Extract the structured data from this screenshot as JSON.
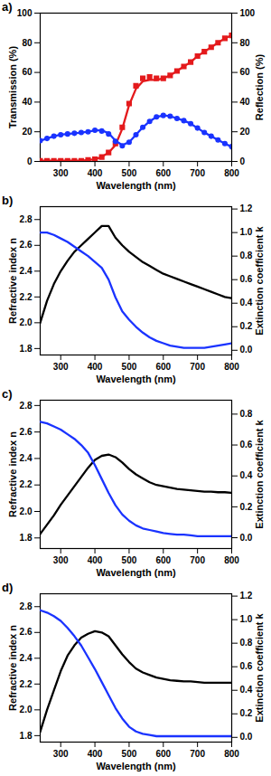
{
  "chart_data": [
    {
      "type": "line",
      "title": "a)",
      "xlabel": "Wavelength (nm)",
      "ylabel": "Transmission (%)",
      "y2label": "Reflection (%)",
      "x": [
        240,
        260,
        280,
        300,
        320,
        340,
        360,
        380,
        400,
        420,
        440,
        460,
        480,
        500,
        520,
        540,
        560,
        580,
        600,
        620,
        640,
        660,
        680,
        700,
        720,
        740,
        760,
        780,
        800
      ],
      "xlim": [
        240,
        800
      ],
      "xticks": [
        300,
        400,
        500,
        600,
        700,
        800
      ],
      "ylim": [
        0,
        100
      ],
      "yticks": [
        0,
        20,
        40,
        60,
        80,
        100
      ],
      "y2lim": [
        0,
        100
      ],
      "y2ticks": [
        0,
        20,
        40,
        60,
        80,
        100
      ],
      "series": [
        {
          "type": "line",
          "color": "#e41a1c",
          "line_style": "solid",
          "values": [
            0.5,
            0.5,
            0.5,
            0.5,
            0.5,
            0.5,
            0.5,
            1,
            1.5,
            3,
            6,
            11,
            22,
            38,
            49,
            54,
            55,
            55,
            56,
            58,
            61,
            64,
            67,
            71,
            74,
            77,
            80,
            83,
            85
          ]
        },
        {
          "type": "scatter",
          "color": "#e41a1c",
          "marker": "square",
          "values": [
            0.5,
            0.5,
            0.5,
            0.5,
            0.5,
            0.5,
            0.5,
            1,
            1.5,
            3,
            6,
            12,
            23,
            39,
            51,
            56,
            57,
            56,
            56,
            58,
            61,
            64,
            67,
            71,
            74,
            77,
            80,
            83,
            85
          ]
        },
        {
          "type": "line",
          "color": "#1a33ff",
          "line_style": "solid",
          "axis": "y2",
          "values": [
            14,
            15.5,
            17,
            18,
            18.5,
            19,
            19.5,
            20,
            21,
            21,
            19,
            14,
            11,
            13,
            18,
            23,
            27,
            30,
            31,
            30.5,
            29,
            27.5,
            25.5,
            22.5,
            19.5,
            17,
            14.5,
            12,
            10
          ]
        },
        {
          "type": "scatter",
          "color": "#1a33ff",
          "marker": "circle",
          "axis": "y2",
          "values": [
            14,
            15.5,
            17,
            18,
            18.5,
            19,
            19.5,
            20,
            21,
            20.5,
            18.5,
            13.5,
            10.5,
            13,
            18,
            23,
            27,
            30,
            31,
            30.5,
            29,
            27.5,
            25.5,
            22.5,
            19.5,
            17,
            14.5,
            12,
            10
          ]
        }
      ]
    },
    {
      "type": "line",
      "title": "b)",
      "xlabel": "Wavelength (nm)",
      "ylabel": "Refractive index n",
      "y2label": "Extinction coefficient k",
      "x": [
        240,
        260,
        280,
        300,
        320,
        340,
        360,
        380,
        400,
        420,
        440,
        460,
        480,
        500,
        520,
        540,
        560,
        580,
        600,
        620,
        640,
        660,
        680,
        700,
        720,
        740,
        760,
        780,
        800
      ],
      "xlim": [
        240,
        800
      ],
      "xticks": [
        300,
        400,
        500,
        600,
        700,
        800
      ],
      "ylim": [
        1.75,
        2.9
      ],
      "yticks": [
        1.8,
        {
          "value": 2,
          "label": "2.0"
        },
        2.2,
        2.4,
        2.6,
        2.8
      ],
      "y2lim": [
        -0.04,
        1.22
      ],
      "y2ticks": [
        {
          "value": 0,
          "label": "0.0"
        },
        0.2,
        0.4,
        0.6,
        0.8,
        {
          "value": 1,
          "label": "1.0"
        },
        1.2
      ],
      "series": [
        {
          "color": "#000000",
          "line_style": "solid",
          "values": [
            2.0,
            2.17,
            2.3,
            2.4,
            2.48,
            2.55,
            2.6,
            2.65,
            2.7,
            2.75,
            2.75,
            2.66,
            2.6,
            2.55,
            2.51,
            2.47,
            2.44,
            2.41,
            2.38,
            2.36,
            2.34,
            2.32,
            2.3,
            2.28,
            2.26,
            2.24,
            2.22,
            2.2,
            2.19
          ]
        },
        {
          "color": "#1a33ff",
          "line_style": "solid",
          "axis": "y2",
          "values": [
            1.0,
            1.0,
            0.98,
            0.95,
            0.92,
            0.88,
            0.84,
            0.8,
            0.75,
            0.7,
            0.6,
            0.45,
            0.33,
            0.26,
            0.2,
            0.15,
            0.11,
            0.08,
            0.06,
            0.04,
            0.03,
            0.02,
            0.02,
            0.02,
            0.02,
            0.03,
            0.04,
            0.05,
            0.06
          ]
        }
      ]
    },
    {
      "type": "line",
      "title": "c)",
      "xlabel": "Wavelength (nm)",
      "ylabel": "Refractive index n",
      "y2label": "Extinction coefficient k",
      "x": [
        240,
        260,
        280,
        300,
        320,
        340,
        360,
        380,
        400,
        420,
        440,
        460,
        480,
        500,
        520,
        540,
        560,
        580,
        600,
        620,
        640,
        660,
        680,
        700,
        720,
        740,
        760,
        780,
        800
      ],
      "xlim": [
        240,
        800
      ],
      "xticks": [
        300,
        400,
        500,
        600,
        700,
        800
      ],
      "ylim": [
        1.72,
        2.84
      ],
      "yticks": [
        1.8,
        {
          "value": 2,
          "label": "2.0"
        },
        2.2,
        2.4,
        2.6,
        2.8
      ],
      "y2lim": [
        -0.07,
        0.89
      ],
      "y2ticks": [
        {
          "value": 0,
          "label": "0.0"
        },
        0.2,
        0.4,
        0.6,
        0.8
      ],
      "series": [
        {
          "color": "#000000",
          "line_style": "solid",
          "values": [
            1.83,
            1.9,
            1.97,
            2.05,
            2.12,
            2.19,
            2.26,
            2.33,
            2.39,
            2.42,
            2.43,
            2.41,
            2.37,
            2.32,
            2.28,
            2.25,
            2.22,
            2.2,
            2.19,
            2.18,
            2.17,
            2.165,
            2.16,
            2.155,
            2.15,
            2.15,
            2.145,
            2.145,
            2.14
          ]
        },
        {
          "color": "#1a33ff",
          "line_style": "solid",
          "axis": "y2",
          "values": [
            0.75,
            0.74,
            0.72,
            0.7,
            0.67,
            0.64,
            0.6,
            0.55,
            0.47,
            0.38,
            0.29,
            0.21,
            0.15,
            0.11,
            0.08,
            0.06,
            0.05,
            0.04,
            0.03,
            0.025,
            0.02,
            0.02,
            0.015,
            0.01,
            0.01,
            0.01,
            0.01,
            0.01,
            0.01
          ]
        }
      ]
    },
    {
      "type": "line",
      "title": "d)",
      "xlabel": "Wavelength (nm)",
      "ylabel": "Refractive index n",
      "y2label": "Extinction coefficient k",
      "x": [
        240,
        260,
        280,
        300,
        320,
        340,
        360,
        380,
        400,
        420,
        440,
        460,
        480,
        500,
        520,
        540,
        560,
        580,
        600,
        620,
        640,
        660,
        680,
        700,
        720,
        740,
        760,
        780,
        800
      ],
      "xlim": [
        240,
        800
      ],
      "xticks": [
        300,
        400,
        500,
        600,
        700,
        800
      ],
      "ylim": [
        1.75,
        2.9
      ],
      "yticks": [
        1.8,
        {
          "value": 2,
          "label": "2.0"
        },
        2.2,
        2.4,
        2.6,
        2.8
      ],
      "y2lim": [
        -0.04,
        1.22
      ],
      "y2ticks": [
        {
          "value": 0,
          "label": "0.0"
        },
        0.2,
        0.4,
        0.6,
        0.8,
        {
          "value": 1,
          "label": "1.0"
        },
        1.2
      ],
      "series": [
        {
          "color": "#000000",
          "line_style": "solid",
          "values": [
            1.83,
            2.0,
            2.15,
            2.3,
            2.42,
            2.5,
            2.56,
            2.59,
            2.61,
            2.6,
            2.57,
            2.5,
            2.43,
            2.37,
            2.32,
            2.29,
            2.27,
            2.25,
            2.24,
            2.23,
            2.225,
            2.22,
            2.22,
            2.215,
            2.21,
            2.21,
            2.21,
            2.21,
            2.21
          ]
        },
        {
          "color": "#1a33ff",
          "line_style": "solid",
          "axis": "y2",
          "values": [
            1.08,
            1.06,
            1.03,
            0.99,
            0.93,
            0.86,
            0.78,
            0.68,
            0.58,
            0.47,
            0.36,
            0.25,
            0.16,
            0.09,
            0.05,
            0.03,
            0.02,
            0.01,
            0.01,
            0.01,
            0.01,
            0.01,
            0.01,
            0.01,
            0.01,
            0.01,
            0.01,
            0.01,
            0.01
          ]
        }
      ]
    }
  ]
}
